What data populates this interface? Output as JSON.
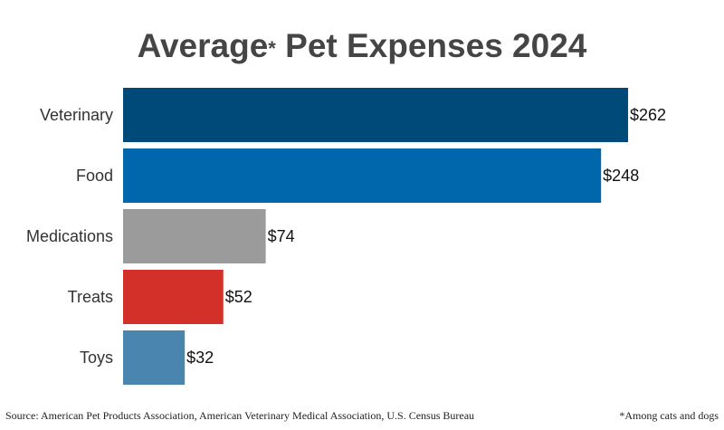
{
  "chart_data": {
    "type": "bar",
    "orientation": "horizontal",
    "title_main": "Average",
    "title_asterisk": "*",
    "title_rest": " Pet Expenses 2024",
    "categories": [
      "Veterinary",
      "Food",
      "Medications",
      "Treats",
      "Toys"
    ],
    "values": [
      262,
      248,
      74,
      52,
      32
    ],
    "value_labels": [
      "$262",
      "$248",
      "$74",
      "$52",
      "$32"
    ],
    "colors": [
      "#004a7a",
      "#0067ad",
      "#9b9b9b",
      "#d3302a",
      "#4a85b0"
    ],
    "xlim": [
      0,
      262
    ],
    "grid": false,
    "unit": "$"
  },
  "footer": {
    "source": "Source: American Pet Products Association, American Veterinary Medical Association, U.S. Census Bureau",
    "note": "*Among cats and dogs"
  }
}
